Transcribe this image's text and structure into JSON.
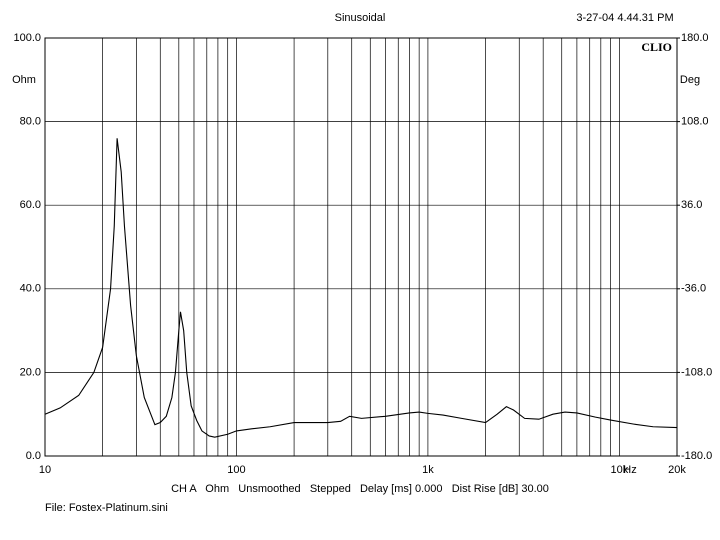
{
  "chart_data": {
    "type": "line",
    "title": "Sinusoidal",
    "timestamp": "3-27-04 4.44.31 PM",
    "brand": "CLIO",
    "footer": "CH A   Ohm   Unsmoothed   Stepped   Delay [ms] 0.000   Dist Rise [dB] 30.00",
    "file": "File: Fostex-Platinum.sini",
    "xlabel": "Hz",
    "ylabel": "Ohm",
    "y2label": "Deg",
    "xscale": "log",
    "grid": true,
    "xlim": [
      10,
      20000
    ],
    "xticks": [
      10,
      100,
      {
        "value": 1000,
        "label": "1k"
      },
      {
        "value": 10000,
        "label": "10k"
      },
      {
        "value": 20000,
        "label": "20k"
      }
    ],
    "xminor": [
      20,
      30,
      40,
      50,
      60,
      70,
      80,
      90,
      200,
      300,
      400,
      500,
      600,
      700,
      800,
      900,
      2000,
      3000,
      4000,
      5000,
      6000,
      7000,
      8000,
      9000
    ],
    "ylim": [
      0,
      100
    ],
    "yticks": [
      {
        "value": 0,
        "label": "0.0"
      },
      {
        "value": 20,
        "label": "20.0"
      },
      {
        "value": 40,
        "label": "40.0"
      },
      {
        "value": 60,
        "label": "60.0"
      },
      {
        "value": 80,
        "label": "80.0"
      },
      {
        "value": 100,
        "label": "100.0"
      }
    ],
    "y2lim": [
      -180,
      180
    ],
    "y2ticks": [
      {
        "value": -180,
        "label": "-180.0"
      },
      {
        "value": -108,
        "label": "-108.0"
      },
      {
        "value": -36,
        "label": "-36.0"
      },
      {
        "value": 36,
        "label": "36.0"
      },
      {
        "value": 108,
        "label": "108.0"
      },
      {
        "value": 180,
        "label": "180.0"
      }
    ],
    "x": [
      10,
      12,
      15,
      18,
      20,
      22,
      23,
      23.8,
      25,
      26,
      28,
      30,
      33,
      37.5,
      40,
      43,
      46,
      48,
      50,
      51,
      53,
      55,
      58,
      62,
      66,
      72,
      77,
      90,
      100,
      120,
      150,
      200,
      300,
      350,
      390,
      450,
      600,
      800,
      900,
      1000,
      1200,
      1500,
      2000,
      2300,
      2570,
      2800,
      3200,
      3800,
      4500,
      5200,
      6000,
      7500,
      9000,
      12000,
      15000,
      20000
    ],
    "series": [
      {
        "name": "Ohm",
        "color": "#000000",
        "values": [
          10,
          11.5,
          14.5,
          20,
          26,
          40,
          55,
          76,
          68,
          55,
          36,
          24,
          14,
          7.5,
          8,
          9.5,
          14,
          20,
          30,
          34.5,
          30,
          20,
          12,
          8.5,
          6,
          4.8,
          4.5,
          5.2,
          6,
          6.5,
          7,
          8,
          8,
          8.3,
          9.5,
          9,
          9.5,
          10.3,
          10.5,
          10.2,
          9.8,
          9,
          8,
          10,
          11.8,
          11,
          9,
          8.8,
          10,
          10.5,
          10.3,
          9.3,
          8.6,
          7.6,
          7,
          6.8
        ]
      }
    ]
  }
}
